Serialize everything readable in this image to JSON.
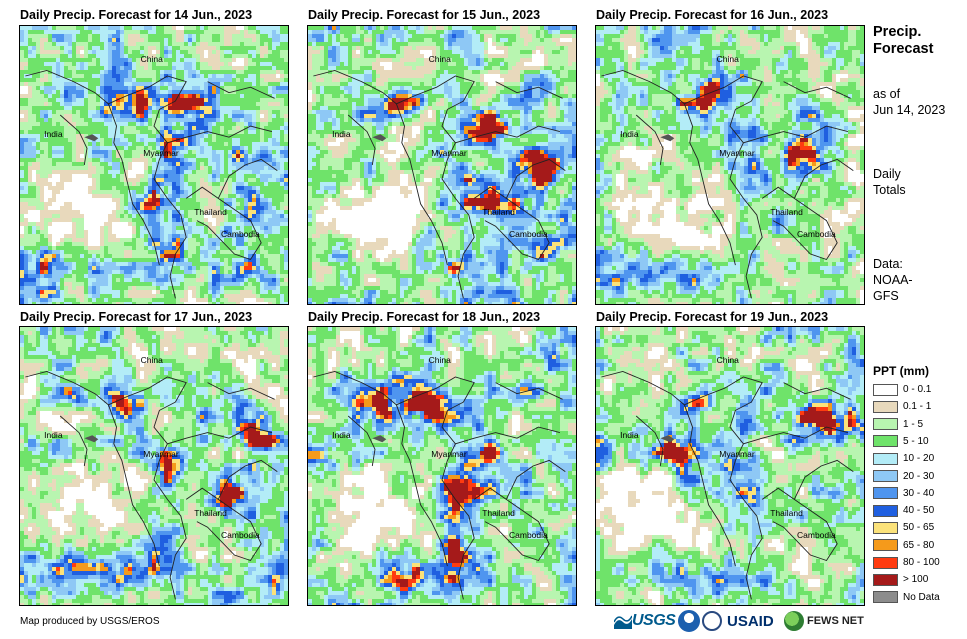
{
  "panels": [
    {
      "title": "Daily Precip. Forecast for 14 Jun., 2023",
      "seed": 14,
      "south_rain": 0.8
    },
    {
      "title": "Daily Precip. Forecast for 15 Jun., 2023",
      "seed": 15,
      "south_rain": 0.4
    },
    {
      "title": "Daily Precip. Forecast for 16 Jun., 2023",
      "seed": 16,
      "south_rain": 0.7
    },
    {
      "title": "Daily Precip. Forecast for 17 Jun., 2023",
      "seed": 17,
      "south_rain": 0.9
    },
    {
      "title": "Daily Precip. Forecast for 18 Jun., 2023",
      "seed": 18,
      "south_rain": 0.8
    },
    {
      "title": "Daily Precip. Forecast for 19 Jun., 2023",
      "seed": 19,
      "south_rain": 0.6
    }
  ],
  "place_labels": {
    "china": "China",
    "india": "India",
    "myanmar": "Myanmar",
    "thailand": "Thailand",
    "cambodia": "Cambodia"
  },
  "sidebar": {
    "heading_line1": "Precip.",
    "heading_line2": "Forecast",
    "asof_line1": "as of",
    "asof_line2": "Jun 14, 2023",
    "totals_line1": "Daily",
    "totals_line2": "Totals",
    "data_line1": "Data:",
    "data_line2": "NOAA-",
    "data_line3": "GFS"
  },
  "legend": {
    "title": "PPT (mm)",
    "items": [
      {
        "label": "0 - 0.1",
        "color": "#ffffff"
      },
      {
        "label": "0.1 - 1",
        "color": "#e8d9bc"
      },
      {
        "label": "1 - 5",
        "color": "#b8f5b0"
      },
      {
        "label": "5 - 10",
        "color": "#6fe36a"
      },
      {
        "label": "10 - 20",
        "color": "#b3ecf7"
      },
      {
        "label": "20 - 30",
        "color": "#8ec8f5"
      },
      {
        "label": "30 - 40",
        "color": "#4f95ef"
      },
      {
        "label": "40 - 50",
        "color": "#1f5fe0"
      },
      {
        "label": "50 - 65",
        "color": "#fbe27a"
      },
      {
        "label": "65 - 80",
        "color": "#f59a1b"
      },
      {
        "label": "80 - 100",
        "color": "#ff3b10"
      },
      {
        "label": "> 100",
        "color": "#a51a1a"
      },
      {
        "label": "No Data",
        "color": "#8c8c8c"
      }
    ]
  },
  "footer": {
    "credit": "Map produced by USGS/EROS",
    "usgs": "USGS",
    "usaid": "USAID",
    "fews": "FEWS NET"
  }
}
